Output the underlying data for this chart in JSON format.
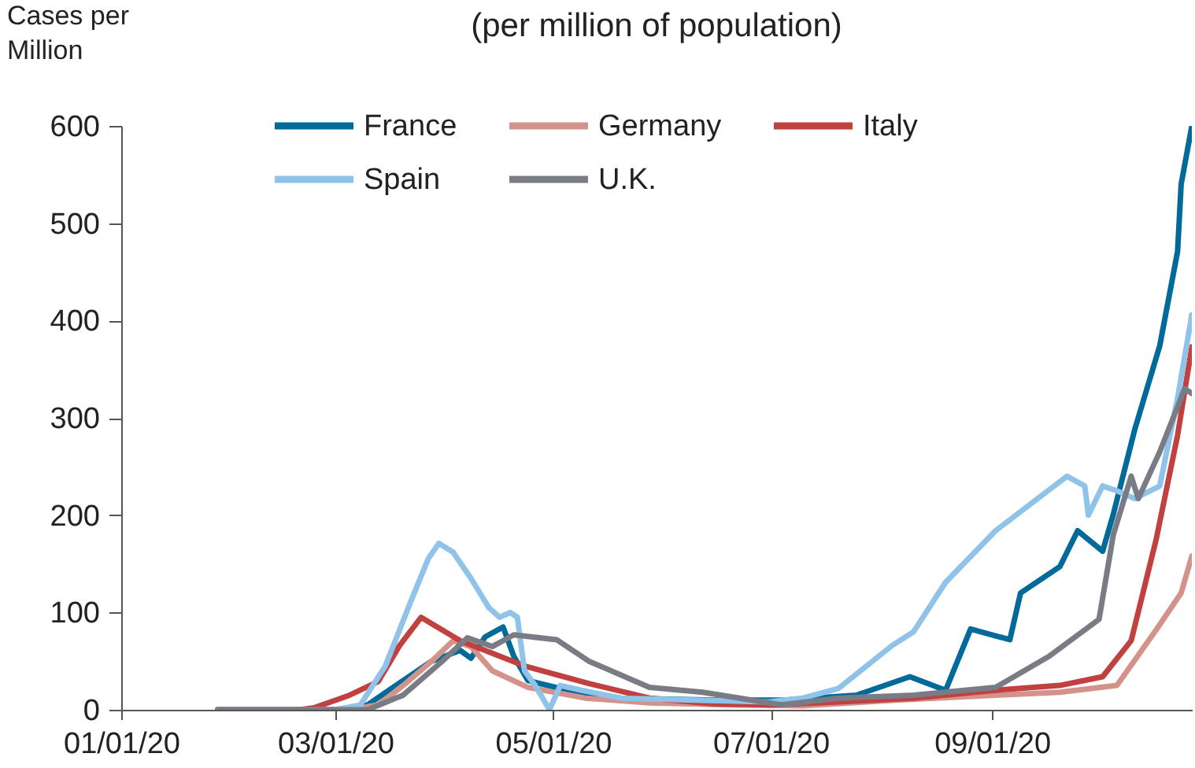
{
  "chart_data": {
    "type": "line",
    "title": "(per million of population)",
    "ylabel": "Cases per Million",
    "xlim": [
      "2020-01-01",
      "2020-10-27"
    ],
    "xticks": [
      {
        "value": "2020-01-01",
        "label": "01/01/20"
      },
      {
        "value": "2020-03-01",
        "label": "03/01/20"
      },
      {
        "value": "2020-05-01",
        "label": "05/01/20"
      },
      {
        "value": "2020-07-01",
        "label": "07/01/20"
      },
      {
        "value": "2020-09-01",
        "label": "09/01/20"
      }
    ],
    "ylim": [
      0,
      600
    ],
    "yticks": [
      0,
      100,
      200,
      300,
      400,
      500,
      600
    ],
    "grid": false,
    "legend": "top",
    "series": [
      {
        "name": "France",
        "color": "#006a9a",
        "x": [
          "2020-01-28",
          "2020-03-01",
          "2020-03-10",
          "2020-03-20",
          "2020-03-28",
          "2020-04-05",
          "2020-04-08",
          "2020-04-12",
          "2020-04-17",
          "2020-04-20",
          "2020-04-24",
          "2020-05-05",
          "2020-05-20",
          "2020-06-15",
          "2020-07-05",
          "2020-07-25",
          "2020-08-09",
          "2020-08-19",
          "2020-08-26",
          "2020-09-06",
          "2020-09-09",
          "2020-09-20",
          "2020-09-25",
          "2020-10-02",
          "2020-10-05",
          "2020-10-11",
          "2020-10-18",
          "2020-10-23",
          "2020-10-24",
          "2020-10-27"
        ],
        "values": [
          0,
          0,
          5,
          30,
          50,
          61,
          53,
          75,
          85,
          55,
          30,
          20,
          12,
          10,
          10,
          15,
          34,
          20,
          83,
          72,
          120,
          147,
          184,
          163,
          201,
          288,
          374,
          471,
          540,
          600
        ]
      },
      {
        "name": "Germany",
        "color": "#d4938a",
        "x": [
          "2020-01-28",
          "2020-03-05",
          "2020-03-13",
          "2020-03-20",
          "2020-03-28",
          "2020-04-03",
          "2020-04-08",
          "2020-04-14",
          "2020-04-24",
          "2020-05-10",
          "2020-05-28",
          "2020-06-20",
          "2020-07-10",
          "2020-08-05",
          "2020-09-02",
          "2020-09-20",
          "2020-10-06",
          "2020-10-17",
          "2020-10-24",
          "2020-10-27"
        ],
        "values": [
          0,
          0,
          5,
          25,
          50,
          71,
          65,
          40,
          23,
          12,
          7,
          5,
          4,
          10,
          15,
          18,
          25,
          82,
          120,
          158
        ]
      },
      {
        "name": "Italy",
        "color": "#c0413f",
        "x": [
          "2020-01-28",
          "2020-02-20",
          "2020-02-24",
          "2020-03-05",
          "2020-03-13",
          "2020-03-19",
          "2020-03-25",
          "2020-04-05",
          "2020-04-23",
          "2020-05-11",
          "2020-05-28",
          "2020-06-15",
          "2020-07-01",
          "2020-07-20",
          "2020-08-10",
          "2020-09-02",
          "2020-09-20",
          "2020-10-02",
          "2020-10-10",
          "2020-10-17",
          "2020-10-23",
          "2020-10-27"
        ],
        "values": [
          0,
          0,
          2,
          15,
          29,
          66,
          95,
          71,
          45,
          27,
          12,
          6,
          5,
          8,
          12,
          20,
          25,
          34,
          71,
          175,
          282,
          373
        ]
      },
      {
        "name": "Spain",
        "color": "#8fc3ea",
        "x": [
          "2020-01-28",
          "2020-03-01",
          "2020-03-08",
          "2020-03-15",
          "2020-03-22",
          "2020-03-27",
          "2020-03-30",
          "2020-04-03",
          "2020-04-08",
          "2020-04-13",
          "2020-04-16",
          "2020-04-19",
          "2020-04-21",
          "2020-04-23",
          "2020-04-26",
          "2020-04-30",
          "2020-05-03",
          "2020-05-09",
          "2020-05-20",
          "2020-06-10",
          "2020-06-30",
          "2020-07-10",
          "2020-07-20",
          "2020-08-04",
          "2020-08-10",
          "2020-08-19",
          "2020-09-02",
          "2020-09-22",
          "2020-09-27",
          "2020-09-28",
          "2020-10-02",
          "2020-10-06",
          "2020-10-11",
          "2020-10-18",
          "2020-10-23",
          "2020-10-27"
        ],
        "values": [
          0,
          0,
          5,
          45,
          110,
          155,
          171,
          162,
          135,
          105,
          95,
          100,
          95,
          40,
          25,
          0,
          25,
          20,
          12,
          10,
          8,
          12,
          22,
          66,
          80,
          131,
          184,
          240,
          230,
          200,
          230,
          225,
          217,
          230,
          320,
          406
        ]
      },
      {
        "name": "U.K.",
        "color": "#7a7c85",
        "x": [
          "2020-01-28",
          "2020-03-10",
          "2020-03-20",
          "2020-03-31",
          "2020-04-07",
          "2020-04-14",
          "2020-04-20",
          "2020-05-02",
          "2020-05-11",
          "2020-05-28",
          "2020-06-12",
          "2020-07-04",
          "2020-07-20",
          "2020-08-10",
          "2020-09-02",
          "2020-09-17",
          "2020-10-01",
          "2020-10-05",
          "2020-10-10",
          "2020-10-12",
          "2020-10-18",
          "2020-10-25",
          "2020-10-27"
        ],
        "values": [
          0,
          0,
          15,
          50,
          74,
          65,
          77,
          72,
          50,
          23,
          18,
          5,
          12,
          15,
          23,
          55,
          93,
          180,
          240,
          217,
          265,
          330,
          325
        ]
      }
    ]
  }
}
